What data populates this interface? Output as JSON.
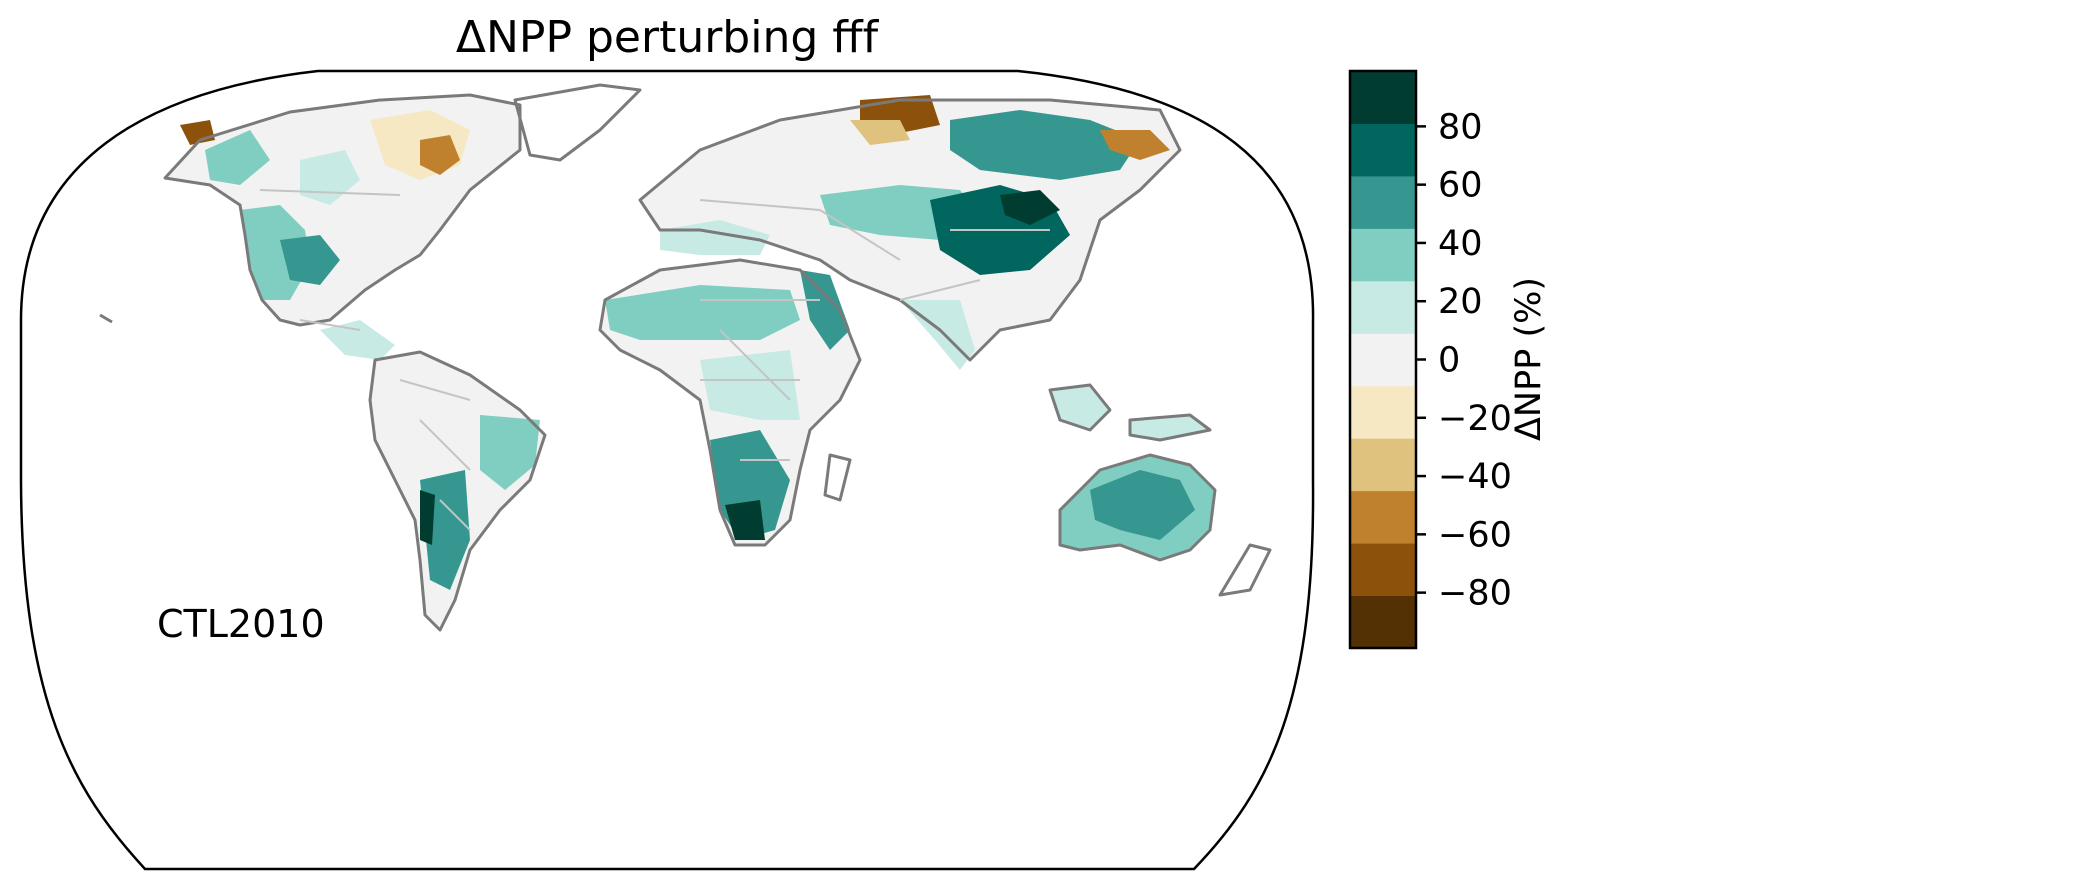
{
  "map": {
    "title": "ΔNPP perturbing fff",
    "annotation": "CTL2010",
    "projection": "Robinson",
    "coastline_color": "#7a7a7a",
    "border_color": "#c4c4c4",
    "land_default_color": "#f2f2f2"
  },
  "colorbar": {
    "label": "ΔNPP (%)",
    "range": [
      -90,
      90
    ],
    "bins": [
      {
        "lo": -90,
        "hi": -72,
        "color": "#543005"
      },
      {
        "lo": -72,
        "hi": -54,
        "color": "#8c510a"
      },
      {
        "lo": -54,
        "hi": -36,
        "color": "#bf812d"
      },
      {
        "lo": -36,
        "hi": -18,
        "color": "#dfc27d"
      },
      {
        "lo": -18,
        "hi": 0,
        "color": "#f6e8c3"
      },
      {
        "lo": 0,
        "hi": 18,
        "color": "#f2f2f2"
      },
      {
        "lo": 18,
        "hi": 36,
        "color": "#c7eae5"
      },
      {
        "lo": 36,
        "hi": 54,
        "color": "#80cdc1"
      },
      {
        "lo": 54,
        "hi": 72,
        "color": "#35978f"
      },
      {
        "lo": 72,
        "hi": 90,
        "color": "#01665e"
      },
      {
        "lo": 90,
        "hi": 108,
        "color": "#003c30"
      }
    ],
    "ticks": [
      {
        "value": 80,
        "label": "80"
      },
      {
        "value": 60,
        "label": "60"
      },
      {
        "value": 40,
        "label": "40"
      },
      {
        "value": 20,
        "label": "20"
      },
      {
        "value": 0,
        "label": "0"
      },
      {
        "value": -20,
        "label": "−20"
      },
      {
        "value": -40,
        "label": "−40"
      },
      {
        "value": -60,
        "label": "−60"
      },
      {
        "value": -80,
        "label": "−80"
      }
    ]
  }
}
